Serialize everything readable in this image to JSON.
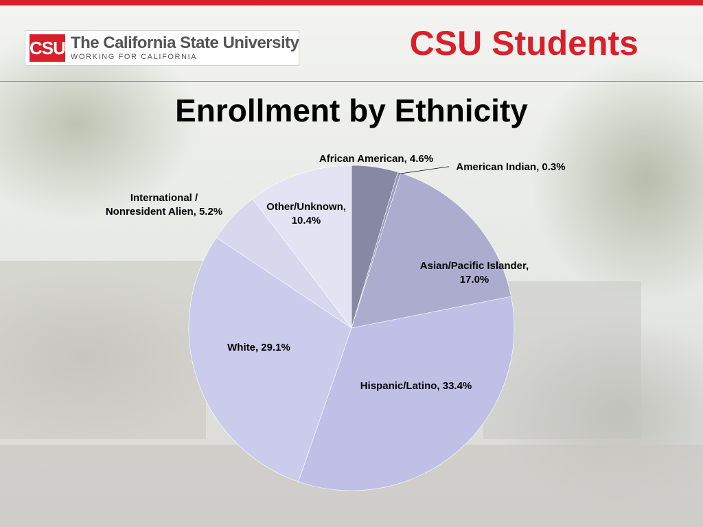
{
  "header": {
    "logo": {
      "mark": "CSU",
      "name": "The California State University",
      "tagline": "WORKING FOR CALIFORNIA"
    },
    "section_title": "CSU Students",
    "slide_title": "Enrollment by Ethnicity"
  },
  "colors": {
    "accent_red": "#d8202a"
  },
  "chart_data": {
    "type": "pie",
    "title": "Enrollment by Ethnicity",
    "legend": "none (data labels)",
    "slices": [
      {
        "name": "African American",
        "value": 4.6,
        "label": "African American, 4.6%",
        "color": "#8788a4"
      },
      {
        "name": "American Indian",
        "value": 0.3,
        "label": "American Indian, 0.3%",
        "color": "#9b9cbd"
      },
      {
        "name": "Asian/Pacific Islander",
        "value": 17.0,
        "label": "Asian/Pacific Islander, 17.0%",
        "color": "#acaccf"
      },
      {
        "name": "Hispanic/Latino",
        "value": 33.4,
        "label": "Hispanic/Latino, 33.4%",
        "color": "#c0c0e6"
      },
      {
        "name": "White",
        "value": 29.1,
        "label": "White, 29.1%",
        "color": "#cbcbeb"
      },
      {
        "name": "International / Nonresident Alien",
        "value": 5.2,
        "label": "International / Nonresident Alien, 5.2%",
        "color": "#d7d7ee"
      },
      {
        "name": "Other/Unknown",
        "value": 10.4,
        "label": "Other/Unknown, 10.4%",
        "color": "#e3e3f4"
      }
    ]
  }
}
